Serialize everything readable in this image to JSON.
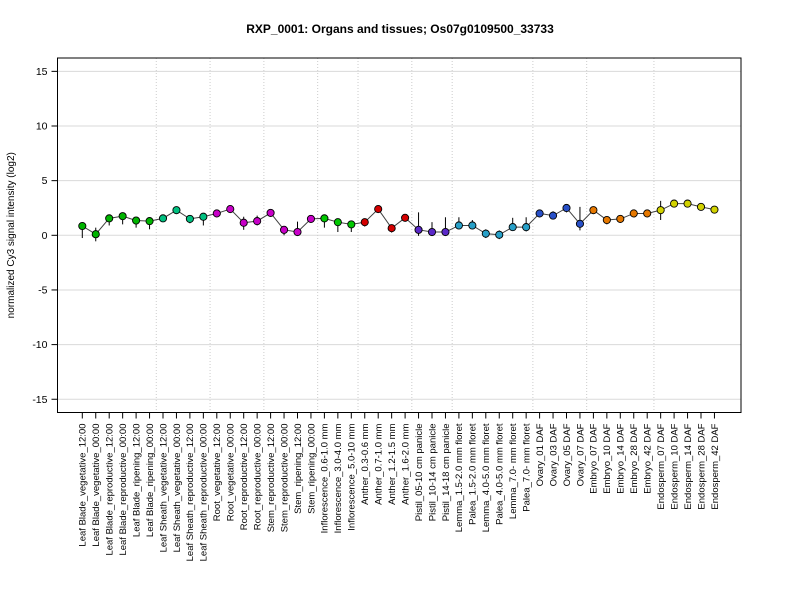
{
  "figure": {
    "title": "RXP_0001: Organs and tissues; Os07g0109500_33733",
    "ylabel": "normalized Cy3 signal intensity (log2)"
  },
  "chart_data": {
    "type": "line",
    "subtype": "scatter-line-with-error-bars",
    "title": "RXP_0001: Organs and tissues; Os07g0109500_33733",
    "xlabel": "",
    "ylabel": "normalized Cy3 signal intensity (log2)",
    "ylim": [
      -16.2,
      16.2
    ],
    "yticks": [
      -15,
      -10,
      -5,
      0,
      5,
      10,
      15
    ],
    "grid": {
      "horizontal_lines": true,
      "vertical_group_separators": "dotted"
    },
    "legend_position": "none",
    "marker": "circle",
    "line_color": "#404040",
    "error_bar_color": "#000000",
    "group_colors": {
      "Leaf Blade": "#00B400",
      "Leaf Sheath": "#00C080",
      "Root": "#C800C8",
      "Stem": "#C800C8",
      "Inflorescence": "#00C800",
      "Anther": "#D40000",
      "Pistil": "#5A28C8",
      "Lemma/Palea": "#28A0C8",
      "Ovary": "#2850C8",
      "Embryo": "#E67800",
      "Endosperm": "#D2D200"
    },
    "separators_after_index": [
      5,
      9,
      13,
      17,
      20,
      24,
      27,
      33,
      37,
      42
    ],
    "points": [
      {
        "label": "Leaf Blade_vegetative_12:00",
        "group": "Leaf Blade",
        "value": 0.85,
        "err_down": 1.1,
        "err_up": 0.2
      },
      {
        "label": "Leaf Blade_vegetative_00:00",
        "group": "Leaf Blade",
        "value": 0.1,
        "err_down": 0.65,
        "err_up": 0.6
      },
      {
        "label": "Leaf Blade_reproductive_12:00",
        "group": "Leaf Blade",
        "value": 1.55,
        "err_down": 0.65,
        "err_up": 0.3
      },
      {
        "label": "Leaf Blade_reproductive_00:00",
        "group": "Leaf Blade",
        "value": 1.75,
        "err_down": 0.75,
        "err_up": 0.2
      },
      {
        "label": "Leaf Blade_ripening_12:00",
        "group": "Leaf Blade",
        "value": 1.35,
        "err_down": 0.65,
        "err_up": 0.2
      },
      {
        "label": "Leaf Blade_ripening_00:00",
        "group": "Leaf Blade",
        "value": 1.3,
        "err_down": 0.75,
        "err_up": 0.2
      },
      {
        "label": "Leaf Sheath_vegetative_12:00",
        "group": "Leaf Sheath",
        "value": 1.55,
        "err_down": 0.3,
        "err_up": 0.2
      },
      {
        "label": "Leaf Sheath_vegetative_00:00",
        "group": "Leaf Sheath",
        "value": 2.3,
        "err_down": 0.3,
        "err_up": 0.3
      },
      {
        "label": "Leaf Sheath_reproductive_12:00",
        "group": "Leaf Sheath",
        "value": 1.5,
        "err_down": 0.4,
        "err_up": 0.2
      },
      {
        "label": "Leaf Sheath_reproductive_00:00",
        "group": "Leaf Sheath",
        "value": 1.7,
        "err_down": 0.8,
        "err_up": 0.2
      },
      {
        "label": "Root_vegetative_12:00",
        "group": "Root",
        "value": 2.0,
        "err_down": 0.3,
        "err_up": 0.3
      },
      {
        "label": "Root_vegetative_00:00",
        "group": "Root",
        "value": 2.4,
        "err_down": 0.3,
        "err_up": 0.3
      },
      {
        "label": "Root_reproductive_12:00",
        "group": "Root",
        "value": 1.15,
        "err_down": 0.65,
        "err_up": 0.55
      },
      {
        "label": "Root_reproductive_00:00",
        "group": "Root",
        "value": 1.3,
        "err_down": 0.4,
        "err_up": 0.5
      },
      {
        "label": "Stem_reproductive_12:00",
        "group": "Stem",
        "value": 2.05,
        "err_down": 0.3,
        "err_up": 0.3
      },
      {
        "label": "Stem_reproductive_00:00",
        "group": "Stem",
        "value": 0.5,
        "err_down": 0.5,
        "err_up": 0.3
      },
      {
        "label": "Stem_ripening_12:00",
        "group": "Stem",
        "value": 0.3,
        "err_down": 0.35,
        "err_up": 0.95
      },
      {
        "label": "Stem_ripening_00:00",
        "group": "Stem",
        "value": 1.5,
        "err_down": 0.3,
        "err_up": 0.3
      },
      {
        "label": "Inflorescence_0.6-1.0 mm",
        "group": "Inflorescence",
        "value": 1.55,
        "err_down": 0.85,
        "err_up": 0.2
      },
      {
        "label": "Inflorescence_3.0-4.0 mm",
        "group": "Inflorescence",
        "value": 1.2,
        "err_down": 0.9,
        "err_up": 0.2
      },
      {
        "label": "Inflorescence_5.0-10 mm",
        "group": "Inflorescence",
        "value": 1.0,
        "err_down": 0.7,
        "err_up": 0.3
      },
      {
        "label": "Anther_0.3-0.6 mm",
        "group": "Anther",
        "value": 1.2,
        "err_down": 0.4,
        "err_up": 0.3
      },
      {
        "label": "Anther_0.7-1.0 mm",
        "group": "Anther",
        "value": 2.4,
        "err_down": 0.3,
        "err_up": 0.3
      },
      {
        "label": "Anther_1.2-1.5 mm",
        "group": "Anther",
        "value": 0.65,
        "err_down": 0.4,
        "err_up": 0.3
      },
      {
        "label": "Anther_1.6-2.0 mm",
        "group": "Anther",
        "value": 1.6,
        "err_down": 0.3,
        "err_up": 0.3
      },
      {
        "label": "Pistil_05-10 cm panicle",
        "group": "Pistil",
        "value": 0.5,
        "err_down": 0.55,
        "err_up": 1.6
      },
      {
        "label": "Pistil_10-14 cm panicle",
        "group": "Pistil",
        "value": 0.3,
        "err_down": 0.3,
        "err_up": 0.9
      },
      {
        "label": "Pistil_14-18 cm panicle",
        "group": "Pistil",
        "value": 0.3,
        "err_down": 0.3,
        "err_up": 1.35
      },
      {
        "label": "Lemma_1.5-2.0 mm floret",
        "group": "Lemma/Palea",
        "value": 0.9,
        "err_down": 0.3,
        "err_up": 0.75
      },
      {
        "label": "Palea_1.5-2.0 mm floret",
        "group": "Lemma/Palea",
        "value": 0.9,
        "err_down": 0.3,
        "err_up": 0.5
      },
      {
        "label": "Lemma_4.0-5.0 mm floret",
        "group": "Lemma/Palea",
        "value": 0.15,
        "err_down": 0.4,
        "err_up": 0.4
      },
      {
        "label": "Palea_4.0-5.0 mm floret",
        "group": "Lemma/Palea",
        "value": 0.05,
        "err_down": 0.4,
        "err_up": 0.4
      },
      {
        "label": "Lemma_7.0- mm floret",
        "group": "Lemma/Palea",
        "value": 0.75,
        "err_down": 0.3,
        "err_up": 0.85
      },
      {
        "label": "Palea_7.0- mm floret",
        "group": "Lemma/Palea",
        "value": 0.75,
        "err_down": 0.4,
        "err_up": 0.9
      },
      {
        "label": "Ovary_01 DAF",
        "group": "Ovary",
        "value": 2.0,
        "err_down": 0.3,
        "err_up": 0.3
      },
      {
        "label": "Ovary_03 DAF",
        "group": "Ovary",
        "value": 1.8,
        "err_down": 0.3,
        "err_up": 0.4
      },
      {
        "label": "Ovary_05 DAF",
        "group": "Ovary",
        "value": 2.5,
        "err_down": 0.4,
        "err_up": 0.3
      },
      {
        "label": "Ovary_07 DAF",
        "group": "Ovary",
        "value": 1.05,
        "err_down": 0.6,
        "err_up": 1.55
      },
      {
        "label": "Embryo_07 DAF",
        "group": "Embryo",
        "value": 2.3,
        "err_down": 0.3,
        "err_up": 0.3
      },
      {
        "label": "Embryo_10 DAF",
        "group": "Embryo",
        "value": 1.4,
        "err_down": 0.4,
        "err_up": 0.3
      },
      {
        "label": "Embryo_14 DAF",
        "group": "Embryo",
        "value": 1.5,
        "err_down": 0.3,
        "err_up": 0.3
      },
      {
        "label": "Embryo_28 DAF",
        "group": "Embryo",
        "value": 2.0,
        "err_down": 0.3,
        "err_up": 0.3
      },
      {
        "label": "Embryo_42 DAF",
        "group": "Embryo",
        "value": 2.0,
        "err_down": 0.3,
        "err_up": 0.3
      },
      {
        "label": "Endosperm_07 DAF",
        "group": "Endosperm",
        "value": 2.3,
        "err_down": 0.9,
        "err_up": 0.85
      },
      {
        "label": "Endosperm_10 DAF",
        "group": "Endosperm",
        "value": 2.9,
        "err_down": 0.2,
        "err_up": 0.2
      },
      {
        "label": "Endosperm_14 DAF",
        "group": "Endosperm",
        "value": 2.9,
        "err_down": 0.25,
        "err_up": 0.25
      },
      {
        "label": "Endosperm_28 DAF",
        "group": "Endosperm",
        "value": 2.6,
        "err_down": 0.3,
        "err_up": 0.3
      },
      {
        "label": "Endosperm_42 DAF",
        "group": "Endosperm",
        "value": 2.35,
        "err_down": 0.2,
        "err_up": 0.2
      }
    ]
  }
}
